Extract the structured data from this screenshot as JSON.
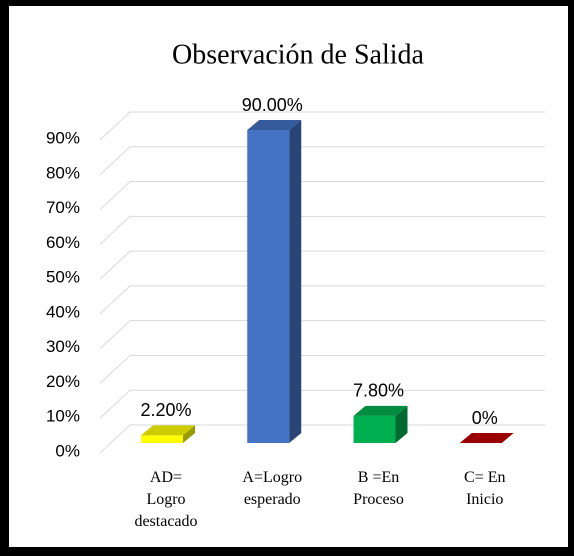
{
  "chart_data": {
    "type": "bar",
    "title": "Observación de Salida",
    "categories": [
      "AD=\nLogro\ndestacado",
      "A=Logro\nesperado",
      "B =En\nProceso",
      "C=  En\nInicio"
    ],
    "values": [
      2.2,
      90,
      7.8,
      0
    ],
    "value_labels": [
      "2.20%",
      "90.00%",
      "7.80%",
      "0%"
    ],
    "colors": [
      "#ffff00",
      "#4472c4",
      "#00b050",
      "#c00000"
    ],
    "ylim": [
      0,
      90
    ],
    "yticks": [
      {
        "value": 0,
        "label": "0%"
      },
      {
        "value": 10,
        "label": "10%"
      },
      {
        "value": 20,
        "label": "20%"
      },
      {
        "value": 30,
        "label": "30%"
      },
      {
        "value": 40,
        "label": "40%"
      },
      {
        "value": 50,
        "label": "50%"
      },
      {
        "value": 60,
        "label": "60%"
      },
      {
        "value": 70,
        "label": "70%"
      },
      {
        "value": 80,
        "label": "80%"
      },
      {
        "value": 90,
        "label": "90%"
      }
    ],
    "grid": true
  }
}
